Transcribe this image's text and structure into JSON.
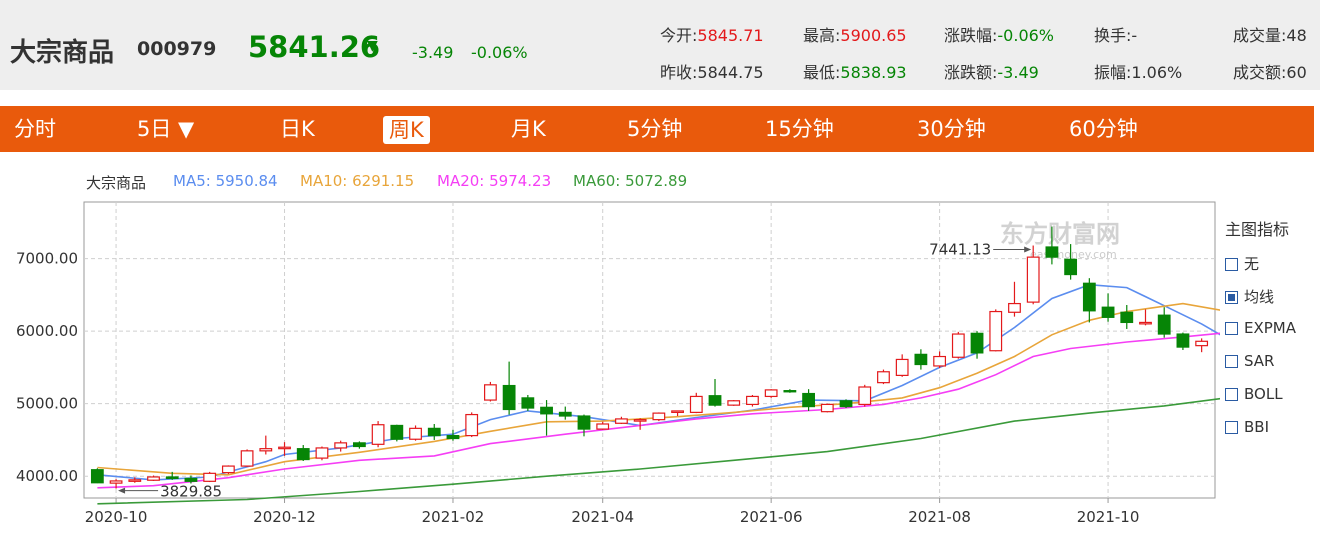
{
  "quote": {
    "name": "大宗商品",
    "code": "000979",
    "price": "5841.26",
    "arrow": "▼",
    "change": "-3.49",
    "change_pct": "-0.06%",
    "stats": {
      "open_label": "今开:",
      "open": "5845.71",
      "high_label": "最高:",
      "high": "5900.65",
      "pct_label": "涨跌幅:",
      "pct": "-0.06%",
      "turnover_label": "换手:",
      "turnover": "-",
      "volume_label": "成交量:",
      "volume": "48",
      "prev_label": "昨收:",
      "prev": "5844.75",
      "low_label": "最低:",
      "low": "5838.93",
      "amt_label": "涨跌额:",
      "amt": "-3.49",
      "amp_label": "振幅:",
      "amp": "1.06%",
      "value_label": "成交额:",
      "value": "60"
    }
  },
  "tabs": [
    {
      "label": "分时"
    },
    {
      "label": "5日 ▼"
    },
    {
      "label": "日K"
    },
    {
      "label": "周K",
      "active": true
    },
    {
      "label": "月K"
    },
    {
      "label": "5分钟"
    },
    {
      "label": "15分钟"
    },
    {
      "label": "30分钟"
    },
    {
      "label": "60分钟"
    }
  ],
  "legend": {
    "name": "大宗商品",
    "ma5": "MA5: 5950.84",
    "ma10": "MA10: 6291.15",
    "ma20": "MA20: 5974.23",
    "ma60": "MA60: 5072.89"
  },
  "indicators": {
    "title": "主图指标",
    "items": [
      {
        "label": "无",
        "checked": false
      },
      {
        "label": "均线",
        "checked": true
      },
      {
        "label": "EXPMA",
        "checked": false
      },
      {
        "label": "SAR",
        "checked": false
      },
      {
        "label": "BOLL",
        "checked": false
      },
      {
        "label": "BBI",
        "checked": false
      }
    ]
  },
  "watermark": {
    "cn": "东方财富网",
    "en": "eastmoney.com"
  },
  "colors": {
    "up": "#e3191b",
    "down": "#068506",
    "ma5": "#5b8def",
    "ma10": "#e8a53a",
    "ma20": "#f53ef5",
    "ma60": "#3a9a3a",
    "tabbar": "#e95a0c"
  },
  "chart_data": {
    "type": "candlestick",
    "y_ticks": [
      "7000.00",
      "6000.00",
      "5000.00",
      "4000.00"
    ],
    "y_tick_values": [
      7000,
      6000,
      5000,
      4000
    ],
    "x_ticks": [
      "2020-10",
      "2020-12",
      "2021-02",
      "2021-04",
      "2021-06",
      "2021-08",
      "2021-10"
    ],
    "x_tick_index": [
      1,
      10,
      19,
      27,
      36,
      45,
      54
    ],
    "ylim": [
      3700,
      7780
    ],
    "annotations": {
      "high": "7441.13",
      "low": "3829.85",
      "high_index": 50,
      "low_index": 1
    },
    "candles": [
      {
        "o": 4090,
        "h": 4110,
        "l": 3905,
        "c": 3910
      },
      {
        "o": 3905,
        "h": 3960,
        "l": 3829.85,
        "c": 3935
      },
      {
        "o": 3930,
        "h": 3985,
        "l": 3910,
        "c": 3950
      },
      {
        "o": 3945,
        "h": 4010,
        "l": 3935,
        "c": 3990
      },
      {
        "o": 3990,
        "h": 4060,
        "l": 3950,
        "c": 3970
      },
      {
        "o": 3970,
        "h": 4010,
        "l": 3900,
        "c": 3930
      },
      {
        "o": 3930,
        "h": 4060,
        "l": 3920,
        "c": 4040
      },
      {
        "o": 4050,
        "h": 4150,
        "l": 4030,
        "c": 4140
      },
      {
        "o": 4140,
        "h": 4370,
        "l": 4130,
        "c": 4350
      },
      {
        "o": 4350,
        "h": 4560,
        "l": 4300,
        "c": 4380
      },
      {
        "o": 4380,
        "h": 4470,
        "l": 4280,
        "c": 4400
      },
      {
        "o": 4380,
        "h": 4430,
        "l": 4210,
        "c": 4230
      },
      {
        "o": 4250,
        "h": 4410,
        "l": 4220,
        "c": 4390
      },
      {
        "o": 4390,
        "h": 4490,
        "l": 4340,
        "c": 4460
      },
      {
        "o": 4460,
        "h": 4480,
        "l": 4380,
        "c": 4410
      },
      {
        "o": 4440,
        "h": 4760,
        "l": 4400,
        "c": 4710
      },
      {
        "o": 4700,
        "h": 4710,
        "l": 4480,
        "c": 4510
      },
      {
        "o": 4510,
        "h": 4700,
        "l": 4490,
        "c": 4660
      },
      {
        "o": 4660,
        "h": 4720,
        "l": 4500,
        "c": 4560
      },
      {
        "o": 4560,
        "h": 4640,
        "l": 4490,
        "c": 4520
      },
      {
        "o": 4560,
        "h": 4880,
        "l": 4540,
        "c": 4850
      },
      {
        "o": 5050,
        "h": 5300,
        "l": 5030,
        "c": 5260
      },
      {
        "o": 5250,
        "h": 5580,
        "l": 4850,
        "c": 4920
      },
      {
        "o": 5080,
        "h": 5120,
        "l": 4900,
        "c": 4940
      },
      {
        "o": 4950,
        "h": 5050,
        "l": 4560,
        "c": 4860
      },
      {
        "o": 4880,
        "h": 4960,
        "l": 4780,
        "c": 4830
      },
      {
        "o": 4830,
        "h": 4850,
        "l": 4550,
        "c": 4650
      },
      {
        "o": 4650,
        "h": 4750,
        "l": 4640,
        "c": 4720
      },
      {
        "o": 4730,
        "h": 4820,
        "l": 4720,
        "c": 4790
      },
      {
        "o": 4760,
        "h": 4800,
        "l": 4640,
        "c": 4780
      },
      {
        "o": 4780,
        "h": 4880,
        "l": 4760,
        "c": 4870
      },
      {
        "o": 4880,
        "h": 4900,
        "l": 4830,
        "c": 4900
      },
      {
        "o": 4880,
        "h": 5150,
        "l": 4870,
        "c": 5100
      },
      {
        "o": 5110,
        "h": 5340,
        "l": 4960,
        "c": 4980
      },
      {
        "o": 4980,
        "h": 5050,
        "l": 4970,
        "c": 5040
      },
      {
        "o": 4990,
        "h": 5120,
        "l": 4960,
        "c": 5100
      },
      {
        "o": 5100,
        "h": 5200,
        "l": 5080,
        "c": 5190
      },
      {
        "o": 5180,
        "h": 5200,
        "l": 5150,
        "c": 5170
      },
      {
        "o": 5140,
        "h": 5200,
        "l": 4900,
        "c": 4960
      },
      {
        "o": 4890,
        "h": 5000,
        "l": 4880,
        "c": 4990
      },
      {
        "o": 5040,
        "h": 5060,
        "l": 4940,
        "c": 4960
      },
      {
        "o": 4990,
        "h": 5260,
        "l": 4960,
        "c": 5230
      },
      {
        "o": 5290,
        "h": 5470,
        "l": 5270,
        "c": 5440
      },
      {
        "o": 5390,
        "h": 5680,
        "l": 5370,
        "c": 5610
      },
      {
        "o": 5680,
        "h": 5750,
        "l": 5470,
        "c": 5540
      },
      {
        "o": 5520,
        "h": 5720,
        "l": 5490,
        "c": 5650
      },
      {
        "o": 5640,
        "h": 5990,
        "l": 5620,
        "c": 5960
      },
      {
        "o": 5970,
        "h": 6000,
        "l": 5620,
        "c": 5700
      },
      {
        "o": 5730,
        "h": 6300,
        "l": 5720,
        "c": 6270
      },
      {
        "o": 6260,
        "h": 6680,
        "l": 6200,
        "c": 6380
      },
      {
        "o": 6400,
        "h": 7180,
        "l": 6370,
        "c": 7020
      },
      {
        "o": 7160,
        "h": 7441.13,
        "l": 6920,
        "c": 7020
      },
      {
        "o": 6990,
        "h": 7200,
        "l": 6710,
        "c": 6780
      },
      {
        "o": 6660,
        "h": 6730,
        "l": 6120,
        "c": 6280
      },
      {
        "o": 6330,
        "h": 6520,
        "l": 6130,
        "c": 6190
      },
      {
        "o": 6260,
        "h": 6360,
        "l": 6030,
        "c": 6120
      },
      {
        "o": 6100,
        "h": 6300,
        "l": 6080,
        "c": 6120
      },
      {
        "o": 6220,
        "h": 6330,
        "l": 5910,
        "c": 5960
      },
      {
        "o": 5960,
        "h": 5980,
        "l": 5740,
        "c": 5780
      },
      {
        "o": 5800,
        "h": 5900,
        "l": 5710,
        "c": 5860
      }
    ],
    "series": [
      {
        "name": "MA5",
        "values": [
          [
            0,
            4020
          ],
          [
            3,
            3950
          ],
          [
            6,
            3990
          ],
          [
            9,
            4200
          ],
          [
            10,
            4300
          ],
          [
            13,
            4390
          ],
          [
            16,
            4520
          ],
          [
            19,
            4580
          ],
          [
            21,
            4780
          ],
          [
            23,
            4900
          ],
          [
            26,
            4820
          ],
          [
            29,
            4700
          ],
          [
            32,
            4810
          ],
          [
            35,
            4910
          ],
          [
            38,
            5050
          ],
          [
            41,
            5040
          ],
          [
            43,
            5250
          ],
          [
            45,
            5500
          ],
          [
            47,
            5700
          ],
          [
            49,
            6050
          ],
          [
            51,
            6450
          ],
          [
            53,
            6640
          ],
          [
            55,
            6600
          ],
          [
            57,
            6350
          ],
          [
            59,
            6100
          ],
          [
            60,
            5950
          ]
        ]
      },
      {
        "name": "MA10",
        "values": [
          [
            0,
            4120
          ],
          [
            4,
            4040
          ],
          [
            7,
            4020
          ],
          [
            10,
            4200
          ],
          [
            14,
            4330
          ],
          [
            18,
            4480
          ],
          [
            21,
            4620
          ],
          [
            24,
            4750
          ],
          [
            27,
            4760
          ],
          [
            31,
            4820
          ],
          [
            34,
            4880
          ],
          [
            37,
            4950
          ],
          [
            40,
            5000
          ],
          [
            43,
            5080
          ],
          [
            45,
            5220
          ],
          [
            47,
            5420
          ],
          [
            49,
            5650
          ],
          [
            51,
            5950
          ],
          [
            53,
            6150
          ],
          [
            55,
            6270
          ],
          [
            58,
            6380
          ],
          [
            60,
            6290
          ]
        ]
      },
      {
        "name": "MA20",
        "values": [
          [
            0,
            3840
          ],
          [
            3,
            3870
          ],
          [
            7,
            3980
          ],
          [
            10,
            4100
          ],
          [
            14,
            4220
          ],
          [
            18,
            4280
          ],
          [
            21,
            4450
          ],
          [
            25,
            4580
          ],
          [
            29,
            4700
          ],
          [
            32,
            4790
          ],
          [
            35,
            4860
          ],
          [
            39,
            4920
          ],
          [
            42,
            4990
          ],
          [
            44,
            5080
          ],
          [
            46,
            5200
          ],
          [
            48,
            5400
          ],
          [
            50,
            5650
          ],
          [
            52,
            5760
          ],
          [
            55,
            5850
          ],
          [
            58,
            5920
          ],
          [
            60,
            5970
          ]
        ]
      },
      {
        "name": "MA60",
        "values": [
          [
            0,
            3620
          ],
          [
            8,
            3680
          ],
          [
            14,
            3790
          ],
          [
            19,
            3890
          ],
          [
            24,
            4000
          ],
          [
            29,
            4100
          ],
          [
            34,
            4220
          ],
          [
            39,
            4340
          ],
          [
            44,
            4520
          ],
          [
            49,
            4760
          ],
          [
            53,
            4870
          ],
          [
            57,
            4970
          ],
          [
            60,
            5070
          ]
        ]
      }
    ]
  }
}
